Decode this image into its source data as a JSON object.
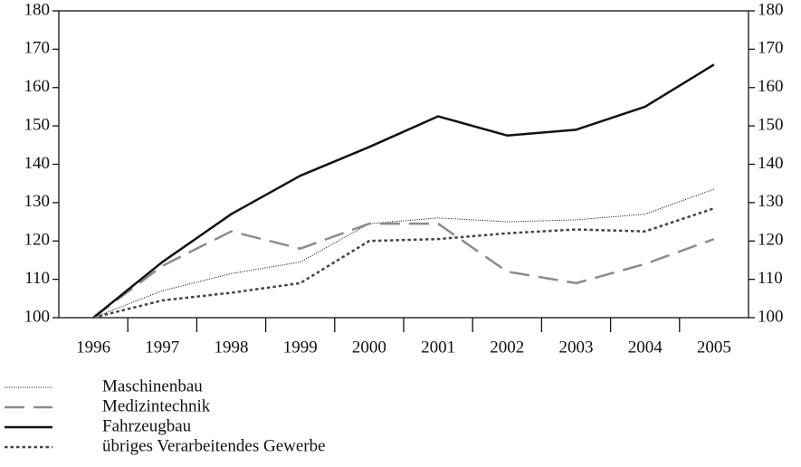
{
  "chart_data": {
    "type": "line",
    "categories": [
      "1996",
      "1997",
      "1998",
      "1999",
      "2000",
      "2001",
      "2002",
      "2003",
      "2004",
      "2005"
    ],
    "series": [
      {
        "name": "Maschinenbau",
        "color": "#000000",
        "dash": "1,1.5",
        "width": 1,
        "values": [
          100,
          107,
          111.5,
          114.5,
          124.5,
          126,
          125,
          125.5,
          127,
          133.5
        ]
      },
      {
        "name": "Medizintechnik",
        "color": "#8c8c8c",
        "dash": "22,10",
        "width": 2.5,
        "values": [
          100,
          113.5,
          122.5,
          118,
          124.5,
          124.5,
          112,
          109,
          114,
          120.5
        ]
      },
      {
        "name": "Fahrzeugbau",
        "color": "#111111",
        "dash": "",
        "width": 2.5,
        "values": [
          100,
          114.5,
          127,
          137,
          144.5,
          152.5,
          147.5,
          149,
          155,
          166
        ]
      },
      {
        "name": "übriges Verarbeitendes Gewerbe",
        "color": "#444444",
        "dash": "3.5,3",
        "width": 2.5,
        "values": [
          100,
          104.5,
          106.5,
          109,
          120,
          120.5,
          122,
          123,
          122.5,
          128.5
        ]
      }
    ],
    "ylim": [
      100,
      180
    ],
    "yticks": [
      100,
      110,
      120,
      130,
      140,
      150,
      160,
      170,
      180
    ],
    "y2lim": [
      100,
      180
    ],
    "y2ticks": [
      100,
      110,
      120,
      130,
      140,
      150,
      160,
      170,
      180
    ],
    "grid": false,
    "legend": "bottom-left"
  }
}
